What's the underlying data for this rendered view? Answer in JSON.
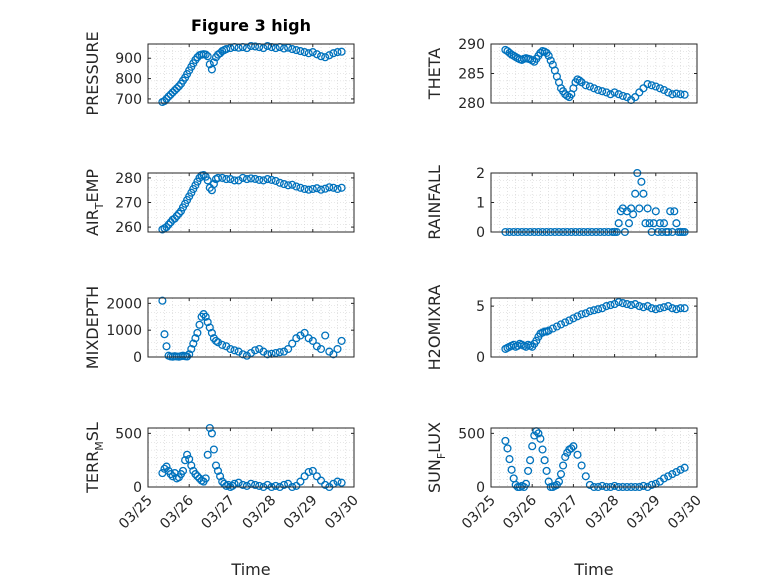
{
  "figure": {
    "title": "Figure 3 high",
    "xlabel": "Time",
    "xtick_labels": [
      "03/25",
      "03/26",
      "03/27",
      "03/28",
      "03/29",
      "03/30"
    ],
    "marker_color": "#0072BD"
  },
  "chart_data": [
    {
      "type": "scatter",
      "ylabel": "PRESSURE",
      "title": "Figure 3 high",
      "xlim": [
        0,
        5
      ],
      "ylim": [
        680,
        970
      ],
      "yticks": [
        700,
        800,
        900
      ],
      "x": [
        0.35,
        0.4,
        0.45,
        0.5,
        0.55,
        0.6,
        0.65,
        0.7,
        0.75,
        0.8,
        0.85,
        0.9,
        0.95,
        1.0,
        1.05,
        1.1,
        1.15,
        1.2,
        1.25,
        1.3,
        1.35,
        1.4,
        1.45,
        1.5,
        1.55,
        1.6,
        1.65,
        1.7,
        1.75,
        1.8,
        1.85,
        1.9,
        2.0,
        2.1,
        2.2,
        2.3,
        2.4,
        2.5,
        2.6,
        2.7,
        2.8,
        2.9,
        3.0,
        3.1,
        3.2,
        3.3,
        3.4,
        3.5,
        3.6,
        3.7,
        3.8,
        3.9,
        4.0,
        4.1,
        4.2,
        4.3,
        4.4,
        4.5,
        4.6,
        4.7
      ],
      "y": [
        685,
        690,
        700,
        712,
        722,
        732,
        742,
        752,
        762,
        775,
        790,
        805,
        822,
        840,
        858,
        875,
        892,
        905,
        915,
        918,
        920,
        918,
        910,
        870,
        845,
        880,
        905,
        918,
        925,
        935,
        940,
        945,
        950,
        955,
        952,
        955,
        950,
        960,
        958,
        955,
        950,
        960,
        955,
        950,
        955,
        948,
        952,
        945,
        940,
        935,
        930,
        925,
        930,
        920,
        910,
        905,
        915,
        925,
        930,
        932
      ]
    },
    {
      "type": "scatter",
      "ylabel": "THETA",
      "xlim": [
        0,
        5
      ],
      "ylim": [
        280,
        290
      ],
      "yticks": [
        280,
        285,
        290
      ],
      "x": [
        0.35,
        0.4,
        0.45,
        0.5,
        0.55,
        0.6,
        0.65,
        0.7,
        0.75,
        0.8,
        0.85,
        0.9,
        0.95,
        1.0,
        1.05,
        1.1,
        1.15,
        1.2,
        1.25,
        1.3,
        1.35,
        1.4,
        1.45,
        1.5,
        1.55,
        1.6,
        1.65,
        1.7,
        1.75,
        1.8,
        1.85,
        1.9,
        1.95,
        2.0,
        2.05,
        2.1,
        2.15,
        2.2,
        2.3,
        2.4,
        2.5,
        2.6,
        2.7,
        2.8,
        2.9,
        3.0,
        3.1,
        3.2,
        3.3,
        3.4,
        3.5,
        3.6,
        3.7,
        3.8,
        3.9,
        4.0,
        4.1,
        4.2,
        4.3,
        4.4,
        4.5,
        4.6,
        4.7
      ],
      "y": [
        289,
        288.8,
        288.5,
        288.2,
        288,
        287.8,
        287.6,
        287.4,
        287.3,
        287.5,
        287.6,
        287.5,
        287.4,
        287.2,
        287,
        287.5,
        288,
        288.5,
        288.8,
        288.7,
        288.5,
        288,
        287.2,
        286.5,
        285.5,
        284.5,
        283.5,
        282.5,
        282,
        281.5,
        281.2,
        281,
        281.5,
        282.5,
        283.5,
        284,
        283.8,
        283.5,
        283,
        282.8,
        282.5,
        282.2,
        282,
        281.8,
        281.5,
        281.8,
        281.5,
        281.2,
        281,
        280.5,
        281,
        281.8,
        282.5,
        283.2,
        283,
        282.8,
        282.5,
        282.2,
        281.8,
        281.5,
        281.6,
        281.5,
        281.4
      ]
    },
    {
      "type": "scatter",
      "ylabel": "AIR_TEMP",
      "xlim": [
        0,
        5
      ],
      "ylim": [
        258,
        282
      ],
      "yticks": [
        260,
        270,
        280
      ],
      "x": [
        0.35,
        0.4,
        0.45,
        0.5,
        0.55,
        0.6,
        0.65,
        0.7,
        0.75,
        0.8,
        0.85,
        0.9,
        0.95,
        1.0,
        1.05,
        1.1,
        1.15,
        1.2,
        1.25,
        1.3,
        1.35,
        1.4,
        1.45,
        1.5,
        1.55,
        1.6,
        1.65,
        1.7,
        1.8,
        1.9,
        2.0,
        2.1,
        2.2,
        2.3,
        2.4,
        2.5,
        2.6,
        2.7,
        2.8,
        2.9,
        3.0,
        3.1,
        3.2,
        3.3,
        3.4,
        3.5,
        3.6,
        3.7,
        3.8,
        3.9,
        4.0,
        4.1,
        4.2,
        4.3,
        4.4,
        4.5,
        4.6,
        4.7
      ],
      "y": [
        259,
        259.5,
        260,
        261,
        262,
        263,
        263.5,
        264.5,
        265.5,
        266.5,
        268,
        269.5,
        271,
        272.5,
        274,
        275.5,
        277,
        278.5,
        280,
        281,
        281.2,
        280.5,
        279,
        276,
        275,
        277.5,
        279.5,
        280,
        280,
        279.5,
        279.5,
        279,
        279,
        280,
        279.5,
        279.8,
        279.6,
        279.2,
        279,
        279.5,
        279.2,
        278.8,
        278,
        277.5,
        277,
        277.2,
        276.5,
        276,
        275.5,
        275.2,
        275.5,
        275.8,
        275.2,
        275.6,
        276.2,
        276,
        275.5,
        276
      ]
    },
    {
      "type": "scatter",
      "ylabel": "RAINFALL",
      "xlim": [
        0,
        5
      ],
      "ylim": [
        0,
        2
      ],
      "yticks": [
        0,
        1,
        2
      ],
      "x": [
        0.35,
        0.45,
        0.55,
        0.65,
        0.75,
        0.85,
        0.95,
        1.05,
        1.15,
        1.25,
        1.35,
        1.45,
        1.55,
        1.65,
        1.75,
        1.85,
        1.95,
        2.05,
        2.15,
        2.25,
        2.35,
        2.45,
        2.55,
        2.65,
        2.75,
        2.85,
        2.95,
        3.0,
        3.05,
        3.1,
        3.15,
        3.2,
        3.25,
        3.3,
        3.35,
        3.4,
        3.45,
        3.5,
        3.55,
        3.6,
        3.65,
        3.7,
        3.75,
        3.8,
        3.85,
        3.9,
        3.95,
        4.0,
        4.05,
        4.1,
        4.15,
        4.2,
        4.25,
        4.3,
        4.35,
        4.4,
        4.45,
        4.5,
        4.55,
        4.6,
        4.65,
        4.7
      ],
      "y": [
        0,
        0,
        0,
        0,
        0,
        0,
        0,
        0,
        0,
        0,
        0,
        0,
        0,
        0,
        0,
        0,
        0,
        0,
        0,
        0,
        0,
        0,
        0,
        0,
        0,
        0,
        0,
        0,
        0,
        0.3,
        0.7,
        0.8,
        0,
        0.7,
        0.3,
        0.8,
        0.6,
        1.3,
        2.0,
        0.8,
        1.7,
        1.3,
        0.3,
        0.8,
        0.3,
        0,
        0.3,
        0.7,
        0,
        0.3,
        0,
        0.3,
        0,
        0,
        0.7,
        0,
        0.7,
        0.3,
        0,
        0,
        0,
        0
      ]
    },
    {
      "type": "scatter",
      "ylabel": "MIXDEPTH",
      "xlim": [
        0,
        5
      ],
      "ylim": [
        0,
        2200
      ],
      "yticks": [
        0,
        1000,
        2000
      ],
      "x": [
        0.35,
        0.4,
        0.45,
        0.5,
        0.55,
        0.6,
        0.65,
        0.7,
        0.75,
        0.8,
        0.85,
        0.9,
        0.95,
        1.0,
        1.05,
        1.1,
        1.15,
        1.2,
        1.25,
        1.3,
        1.35,
        1.4,
        1.45,
        1.5,
        1.55,
        1.6,
        1.65,
        1.7,
        1.8,
        1.9,
        2.0,
        2.1,
        2.2,
        2.3,
        2.4,
        2.5,
        2.6,
        2.7,
        2.8,
        2.9,
        3.0,
        3.1,
        3.2,
        3.3,
        3.4,
        3.5,
        3.6,
        3.7,
        3.8,
        3.9,
        4.0,
        4.1,
        4.2,
        4.3,
        4.4,
        4.5,
        4.6,
        4.7
      ],
      "y": [
        2100,
        850,
        400,
        50,
        20,
        10,
        30,
        20,
        10,
        30,
        50,
        30,
        20,
        100,
        300,
        500,
        700,
        900,
        1200,
        1500,
        1600,
        1500,
        1300,
        1100,
        900,
        700,
        600,
        550,
        450,
        400,
        300,
        250,
        200,
        100,
        50,
        150,
        250,
        300,
        200,
        100,
        120,
        150,
        180,
        200,
        300,
        500,
        700,
        800,
        900,
        700,
        600,
        400,
        300,
        800,
        200,
        100,
        300,
        600
      ]
    },
    {
      "type": "scatter",
      "ylabel": "H2OMIXRA",
      "xlim": [
        0,
        5
      ],
      "ylim": [
        0,
        5.8
      ],
      "yticks": [
        0,
        5
      ],
      "x": [
        0.35,
        0.4,
        0.45,
        0.5,
        0.55,
        0.6,
        0.65,
        0.7,
        0.75,
        0.8,
        0.85,
        0.9,
        0.95,
        1.0,
        1.05,
        1.1,
        1.15,
        1.2,
        1.25,
        1.3,
        1.35,
        1.4,
        1.5,
        1.6,
        1.7,
        1.8,
        1.9,
        2.0,
        2.1,
        2.2,
        2.3,
        2.4,
        2.5,
        2.6,
        2.7,
        2.8,
        2.9,
        3.0,
        3.1,
        3.2,
        3.3,
        3.4,
        3.5,
        3.6,
        3.7,
        3.8,
        3.9,
        4.0,
        4.1,
        4.2,
        4.3,
        4.4,
        4.5,
        4.6,
        4.7
      ],
      "y": [
        0.8,
        0.9,
        1.0,
        1.1,
        1.2,
        1.0,
        1.1,
        1.3,
        1.2,
        1.1,
        1.0,
        1.2,
        1.1,
        1.0,
        1.3,
        1.6,
        2.0,
        2.3,
        2.4,
        2.5,
        2.5,
        2.6,
        2.8,
        3.0,
        3.2,
        3.4,
        3.6,
        3.8,
        4.0,
        4.2,
        4.3,
        4.5,
        4.6,
        4.7,
        4.8,
        5.0,
        5.1,
        5.2,
        5.4,
        5.3,
        5.2,
        5.1,
        5.2,
        5.0,
        4.9,
        5.0,
        4.8,
        4.7,
        4.8,
        4.9,
        5.0,
        4.8,
        4.7,
        4.8,
        4.8
      ]
    },
    {
      "type": "scatter",
      "ylabel": "TERR_MSL",
      "xlim": [
        0,
        5
      ],
      "ylim": [
        0,
        550
      ],
      "yticks": [
        0,
        500
      ],
      "x": [
        0.35,
        0.4,
        0.45,
        0.5,
        0.55,
        0.6,
        0.65,
        0.7,
        0.75,
        0.8,
        0.85,
        0.9,
        0.95,
        1.0,
        1.05,
        1.1,
        1.15,
        1.2,
        1.25,
        1.3,
        1.35,
        1.4,
        1.45,
        1.5,
        1.55,
        1.6,
        1.65,
        1.7,
        1.75,
        1.8,
        1.85,
        1.9,
        1.95,
        2.0,
        2.05,
        2.1,
        2.2,
        2.3,
        2.4,
        2.5,
        2.6,
        2.7,
        2.8,
        2.9,
        3.0,
        3.1,
        3.2,
        3.3,
        3.4,
        3.5,
        3.6,
        3.7,
        3.8,
        3.9,
        4.0,
        4.1,
        4.2,
        4.3,
        4.4,
        4.5,
        4.6,
        4.7
      ],
      "y": [
        130,
        170,
        190,
        150,
        120,
        100,
        130,
        80,
        90,
        120,
        150,
        250,
        300,
        260,
        200,
        150,
        120,
        100,
        80,
        60,
        50,
        80,
        300,
        550,
        500,
        350,
        200,
        150,
        100,
        50,
        30,
        10,
        20,
        0,
        10,
        30,
        40,
        20,
        10,
        30,
        20,
        10,
        0,
        20,
        0,
        10,
        0,
        20,
        30,
        0,
        10,
        50,
        100,
        140,
        150,
        100,
        60,
        20,
        0,
        30,
        50,
        40
      ]
    },
    {
      "type": "scatter",
      "ylabel": "SUN_FLUX",
      "xlim": [
        0,
        5
      ],
      "ylim": [
        0,
        550
      ],
      "yticks": [
        0,
        500
      ],
      "x": [
        0.35,
        0.4,
        0.45,
        0.5,
        0.55,
        0.6,
        0.65,
        0.7,
        0.75,
        0.8,
        0.85,
        0.9,
        0.95,
        1.0,
        1.05,
        1.1,
        1.15,
        1.2,
        1.25,
        1.3,
        1.35,
        1.4,
        1.45,
        1.5,
        1.55,
        1.6,
        1.65,
        1.7,
        1.75,
        1.8,
        1.85,
        1.9,
        1.95,
        2.0,
        2.1,
        2.2,
        2.3,
        2.4,
        2.5,
        2.6,
        2.7,
        2.8,
        2.9,
        3.0,
        3.1,
        3.2,
        3.3,
        3.4,
        3.5,
        3.6,
        3.7,
        3.8,
        3.9,
        4.0,
        4.1,
        4.2,
        4.3,
        4.4,
        4.5,
        4.6,
        4.7
      ],
      "y": [
        430,
        360,
        260,
        160,
        80,
        20,
        0,
        0,
        10,
        0,
        30,
        150,
        250,
        380,
        480,
        520,
        500,
        450,
        350,
        250,
        150,
        50,
        0,
        0,
        10,
        20,
        50,
        120,
        200,
        280,
        320,
        350,
        360,
        380,
        300,
        200,
        100,
        20,
        0,
        0,
        10,
        0,
        0,
        10,
        0,
        0,
        0,
        0,
        0,
        0,
        10,
        0,
        20,
        30,
        50,
        80,
        100,
        120,
        140,
        160,
        180
      ]
    }
  ]
}
